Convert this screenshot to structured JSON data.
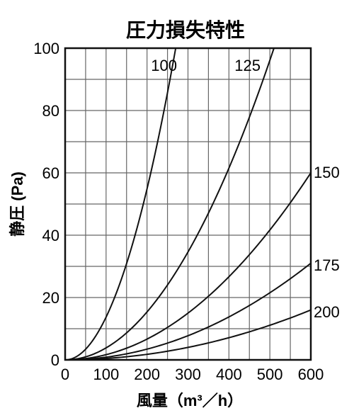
{
  "chart_data": {
    "type": "line",
    "title": "圧力損失特性",
    "xlabel": "風量（m³／h）",
    "ylabel": "静圧 (Pa)",
    "xlim": [
      0,
      600
    ],
    "ylim": [
      0,
      100
    ],
    "x_ticks": [
      "0",
      "100",
      "200",
      "300",
      "400",
      "500",
      "600"
    ],
    "y_ticks": [
      "0",
      "20",
      "40",
      "60",
      "80",
      "100"
    ],
    "grid": true,
    "series": [
      {
        "name": "100",
        "x": [
          0,
          50,
          100,
          150,
          200,
          250,
          270
        ],
        "y": [
          0,
          3.4,
          13.7,
          30.9,
          54.9,
          85.8,
          100
        ]
      },
      {
        "name": "125",
        "x": [
          0,
          100,
          200,
          300,
          400,
          500,
          510
        ],
        "y": [
          0,
          3.8,
          15.4,
          34.6,
          61.5,
          96.1,
          100
        ]
      },
      {
        "name": "150",
        "x": [
          0,
          100,
          200,
          300,
          400,
          500,
          600
        ],
        "y": [
          0,
          1.7,
          6.7,
          15.0,
          26.7,
          41.7,
          60
        ]
      },
      {
        "name": "175",
        "x": [
          0,
          100,
          200,
          300,
          400,
          500,
          600
        ],
        "y": [
          0,
          0.9,
          3.4,
          7.8,
          13.8,
          21.5,
          31
        ]
      },
      {
        "name": "200",
        "x": [
          0,
          100,
          200,
          300,
          400,
          500,
          600
        ],
        "y": [
          0,
          0.4,
          1.8,
          4.0,
          7.1,
          11.1,
          16
        ]
      }
    ]
  }
}
